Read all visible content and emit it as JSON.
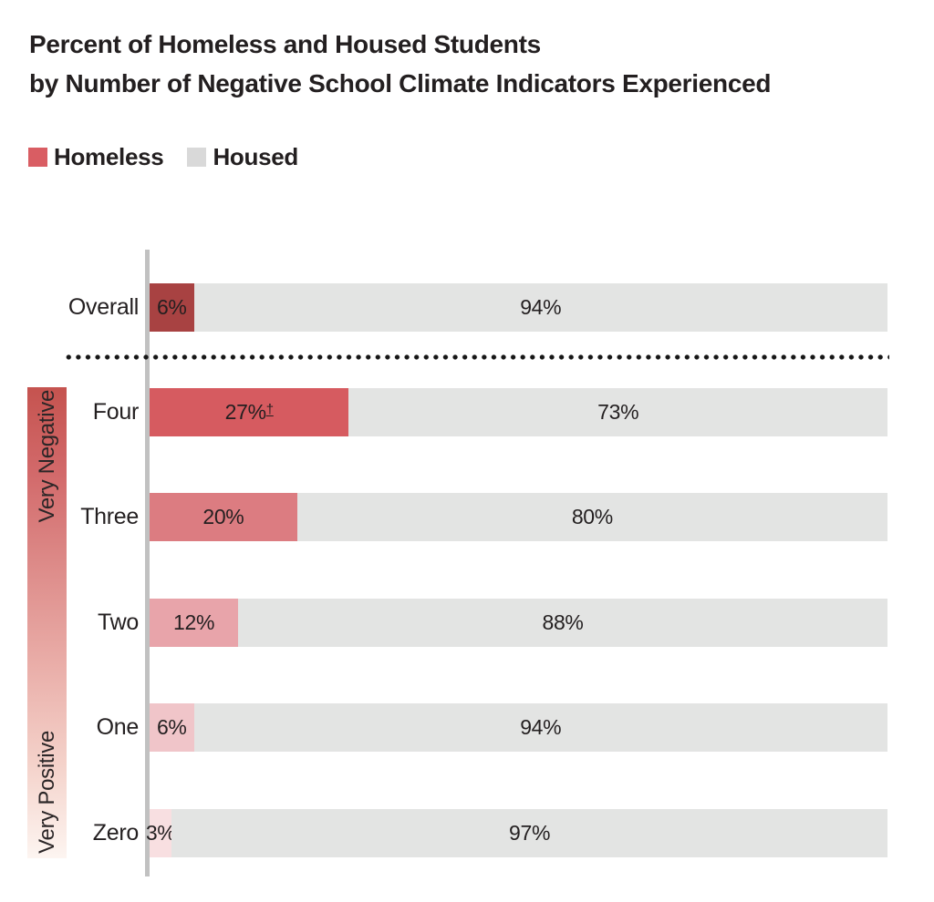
{
  "title": {
    "line1": "Percent of Homeless and Housed Students",
    "line2": "by Number of Negative School Climate Indicators Experienced"
  },
  "legend": [
    {
      "label": "Homeless",
      "color": "#d95d63"
    },
    {
      "label": "Housed",
      "color": "#d9d9d9"
    }
  ],
  "gradient_axis": {
    "top_label": "Very Negative",
    "bottom_label": "Very Positive"
  },
  "colors": {
    "housed_bar": "#e3e4e3",
    "axis_line": "#c1c1c1",
    "divider_dots": "#161616",
    "text": "#231f20"
  },
  "rows": [
    {
      "label": "Overall",
      "homeless_pct": 6,
      "housed_pct": 94,
      "homeless_label": "6%",
      "housed_label": "94%",
      "footnote": "",
      "homeless_color": "#a84242"
    },
    {
      "label": "Four",
      "homeless_pct": 27,
      "housed_pct": 73,
      "homeless_label": "27%",
      "housed_label": "73%",
      "footnote": "†",
      "homeless_color": "#d65b60"
    },
    {
      "label": "Three",
      "homeless_pct": 20,
      "housed_pct": 80,
      "homeless_label": "20%",
      "housed_label": "80%",
      "footnote": "",
      "homeless_color": "#dc7c81"
    },
    {
      "label": "Two",
      "homeless_pct": 12,
      "housed_pct": 88,
      "homeless_label": "12%",
      "housed_label": "88%",
      "footnote": "",
      "homeless_color": "#e8a4aa"
    },
    {
      "label": "One",
      "homeless_pct": 6,
      "housed_pct": 94,
      "homeless_label": "6%",
      "housed_label": "94%",
      "footnote": "",
      "homeless_color": "#f0c5c9"
    },
    {
      "label": "Zero",
      "homeless_pct": 3,
      "housed_pct": 97,
      "homeless_label": "3%",
      "housed_label": "97%",
      "footnote": "",
      "homeless_color": "#f8dfe1"
    }
  ],
  "chart_data": {
    "type": "bar",
    "orientation": "horizontal",
    "stacked": true,
    "title": "Percent of Homeless and Housed Students by Number of Negative School Climate Indicators Experienced",
    "categories": [
      "Overall",
      "Four",
      "Three",
      "Two",
      "One",
      "Zero"
    ],
    "series": [
      {
        "name": "Homeless",
        "values": [
          6,
          27,
          20,
          12,
          6,
          3
        ]
      },
      {
        "name": "Housed",
        "values": [
          94,
          73,
          80,
          88,
          94,
          97
        ]
      }
    ],
    "annotations": [
      "27% value for category Four carries an underlined dagger footnote marker"
    ],
    "category_axis_note": "Categories Four through Zero are bracketed by a red-to-white gradient scale labeled Very Negative (top) to Very Positive (bottom); Overall is separated from the rest by a black dotted horizontal line",
    "value_axis_range": [
      0,
      100
    ],
    "legend_position": "top-left",
    "grid": false
  }
}
